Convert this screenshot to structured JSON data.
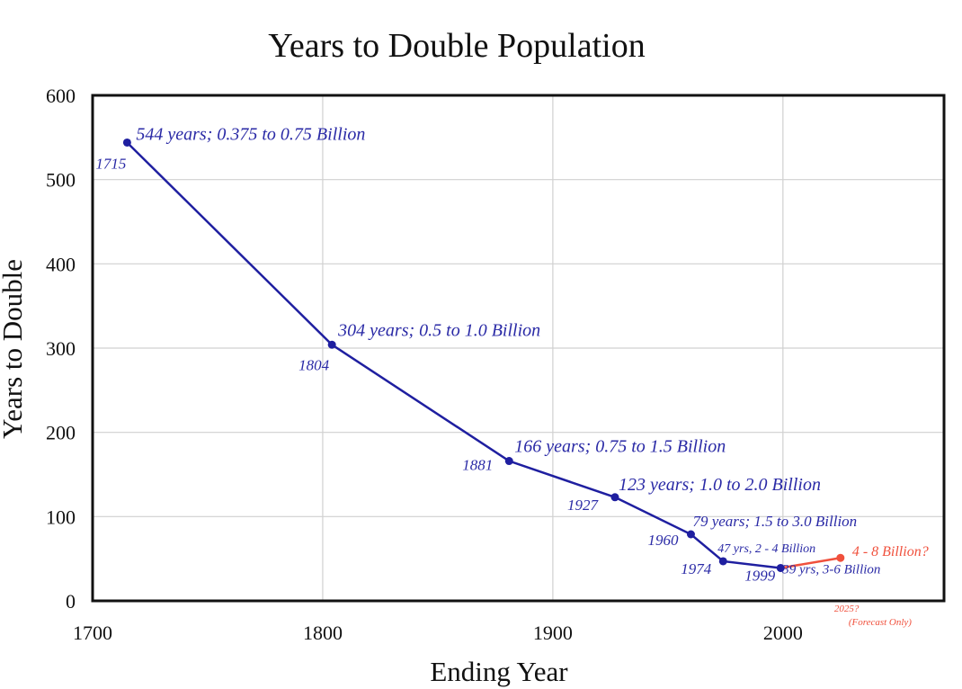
{
  "chart_data": {
    "type": "line",
    "title": "Years to Double Population",
    "xlabel": "Ending Year",
    "ylabel": "Years to Double",
    "xlim": [
      1700,
      2070
    ],
    "ylim": [
      0,
      600
    ],
    "x_ticks": [
      "1700",
      "1800",
      "1900",
      "2000"
    ],
    "y_ticks": [
      "0",
      "100",
      "200",
      "300",
      "400",
      "500",
      "600"
    ],
    "grid": true,
    "colors": {
      "history": "#1f1fa0",
      "history_text": "#2a2aa6",
      "forecast": "#f0503c"
    },
    "series": [
      {
        "points": [
          {
            "x": 1715,
            "y": 544,
            "year_label": "1715",
            "note": "544 years; 0.375 to 0.75 Billion"
          },
          {
            "x": 1804,
            "y": 304,
            "year_label": "1804",
            "note": "304 years; 0.5 to 1.0 Billion"
          },
          {
            "x": 1881,
            "y": 166,
            "year_label": "1881",
            "note": "166 years; 0.75 to 1.5 Billion"
          },
          {
            "x": 1927,
            "y": 123,
            "year_label": "1927",
            "note": "123 years; 1.0 to 2.0 Billion"
          },
          {
            "x": 1960,
            "y": 79,
            "year_label": "1960",
            "note": "79 years; 1.5 to 3.0 Billion"
          },
          {
            "x": 1974,
            "y": 47,
            "year_label": "1974",
            "note": "47 yrs, 2 - 4 Billion"
          },
          {
            "x": 1999,
            "y": 39,
            "year_label": "1999",
            "note": "39 yrs, 3-6 Billion"
          }
        ]
      },
      {
        "forecast": true,
        "points": [
          {
            "x": 1999,
            "y": 39
          },
          {
            "x": 2025,
            "y": 51,
            "note": "4 - 8 Billion?",
            "year_label": "2025?",
            "sub_label": "(Forecast Only)"
          }
        ]
      }
    ]
  }
}
